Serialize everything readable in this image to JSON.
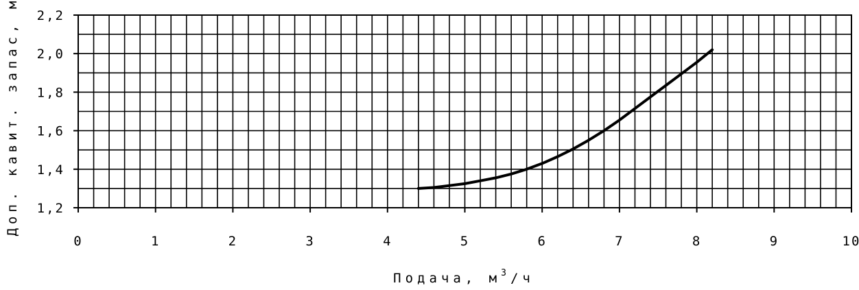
{
  "chart_data": {
    "type": "line",
    "title": "",
    "xlabel": "Подача, м",
    "xlabel_sup": "3",
    "xlabel_suffix": "/ч",
    "ylabel": "Доп. кавит. запас, м",
    "xlim": [
      0,
      10
    ],
    "ylim": [
      1.2,
      2.2
    ],
    "x_ticks": [
      "0",
      "1",
      "2",
      "3",
      "4",
      "5",
      "6",
      "7",
      "8",
      "9",
      "10"
    ],
    "y_ticks": [
      "1,2",
      "1,4",
      "1,6",
      "1,8",
      "2,0",
      "2,2"
    ],
    "grid": true,
    "series": [
      {
        "color": "#000000",
        "x": [
          4.4,
          4.6,
          4.8,
          5.0,
          5.2,
          5.4,
          5.6,
          5.8,
          6.0,
          6.2,
          6.4,
          6.6,
          6.8,
          7.0,
          7.2,
          7.4,
          7.6,
          7.8,
          8.0,
          8.2
        ],
        "y": [
          1.3,
          1.305,
          1.315,
          1.325,
          1.34,
          1.355,
          1.375,
          1.4,
          1.43,
          1.465,
          1.505,
          1.55,
          1.6,
          1.655,
          1.715,
          1.775,
          1.835,
          1.895,
          1.955,
          2.02
        ]
      }
    ]
  }
}
